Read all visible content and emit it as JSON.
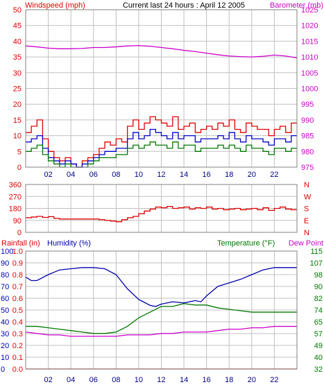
{
  "colors": {
    "wind": "#e00000",
    "gust": "#e00000",
    "wind2": "#0000cc",
    "wind3": "#007700",
    "barometer": "#cc00cc",
    "direction": "#e00000",
    "humidity": "#0000aa",
    "temperature": "#007700",
    "dewpoint": "#cc00cc",
    "rainfall": "#e00000",
    "grid": "#c0c0c0",
    "title": "#000000"
  },
  "chart_data": [
    {
      "type": "line",
      "title": "Current last 24 hours : April 12 2005",
      "ylabel": "Windspeed (mph)",
      "y2label": "Barometer (mb)",
      "xlim": [
        0,
        24
      ],
      "x_ticks": [
        "02",
        "04",
        "06",
        "08",
        "10",
        "12",
        "14",
        "16",
        "18",
        "20",
        "22"
      ],
      "x_tick_values": [
        2,
        4,
        6,
        8,
        10,
        12,
        14,
        16,
        18,
        20,
        22
      ],
      "ylim": [
        0,
        50
      ],
      "y_ticks": [
        "0",
        "5",
        "10",
        "15",
        "20",
        "25",
        "30",
        "35",
        "40",
        "45",
        "50"
      ],
      "y2lim": [
        975,
        1025
      ],
      "y2_ticks": [
        "975",
        "980",
        "985",
        "990",
        "995",
        "1000",
        "1005",
        "1010",
        "1015",
        "1020",
        "1025"
      ],
      "grid": true,
      "series": [
        {
          "key": "gust",
          "axis": "y",
          "step": true,
          "x": [
            0.0,
            0.5,
            1.0,
            1.5,
            2.0,
            2.5,
            3.0,
            3.5,
            4.0,
            4.5,
            5.0,
            5.5,
            6.0,
            6.5,
            7.0,
            7.5,
            8.0,
            8.5,
            9.0,
            9.5,
            10.0,
            10.5,
            11.0,
            11.5,
            12.0,
            12.5,
            13.0,
            13.5,
            14.0,
            14.5,
            15.0,
            15.5,
            16.0,
            16.5,
            17.0,
            17.5,
            18.0,
            18.5,
            19.0,
            19.5,
            20.0,
            20.5,
            21.0,
            21.5,
            22.0,
            22.5,
            23.0,
            23.5
          ],
          "values": [
            11,
            13,
            15,
            9,
            5,
            3,
            2,
            3,
            1,
            0,
            2,
            3,
            4,
            6,
            8,
            7,
            9,
            8,
            13,
            15,
            12,
            14,
            16,
            15,
            14,
            13,
            16,
            12,
            13,
            14,
            11,
            12,
            13,
            12,
            14,
            13,
            15,
            12,
            11,
            14,
            13,
            12,
            12,
            10,
            12,
            13,
            11,
            14
          ]
        },
        {
          "key": "wind2",
          "axis": "y",
          "step": true,
          "x": [
            0.0,
            0.5,
            1.0,
            1.5,
            2.0,
            2.5,
            3.0,
            3.5,
            4.0,
            4.5,
            5.0,
            5.5,
            6.0,
            6.5,
            7.0,
            7.5,
            8.0,
            8.5,
            9.0,
            9.5,
            10.0,
            10.5,
            11.0,
            11.5,
            12.0,
            12.5,
            13.0,
            13.5,
            14.0,
            14.5,
            15.0,
            15.5,
            16.0,
            16.5,
            17.0,
            17.5,
            18.0,
            18.5,
            19.0,
            19.5,
            20.0,
            20.5,
            21.0,
            21.5,
            22.0,
            22.5,
            23.0,
            23.5
          ],
          "values": [
            8,
            9,
            10,
            6,
            3,
            2,
            1,
            2,
            1,
            0,
            1,
            2,
            3,
            4,
            5,
            5,
            6,
            6,
            9,
            11,
            9,
            10,
            12,
            11,
            10,
            9,
            11,
            9,
            10,
            10,
            8,
            9,
            9,
            9,
            10,
            9,
            11,
            9,
            8,
            10,
            9,
            9,
            8,
            7,
            9,
            9,
            8,
            10
          ]
        },
        {
          "key": "wind3",
          "axis": "y",
          "step": true,
          "x": [
            0.0,
            0.5,
            1.0,
            1.5,
            2.0,
            2.5,
            3.0,
            3.5,
            4.0,
            4.5,
            5.0,
            5.5,
            6.0,
            6.5,
            7.0,
            7.5,
            8.0,
            8.5,
            9.0,
            9.5,
            10.0,
            10.5,
            11.0,
            11.5,
            12.0,
            12.5,
            13.0,
            13.5,
            14.0,
            14.5,
            15.0,
            15.5,
            16.0,
            16.5,
            17.0,
            17.5,
            18.0,
            18.5,
            19.0,
            19.5,
            20.0,
            20.5,
            21.0,
            21.5,
            22.0,
            22.5,
            23.0,
            23.5
          ],
          "values": [
            5,
            6,
            7,
            4,
            2,
            1,
            0,
            1,
            0,
            0,
            0,
            1,
            2,
            3,
            3,
            3,
            4,
            4,
            6,
            7,
            6,
            7,
            8,
            7,
            7,
            6,
            8,
            6,
            7,
            7,
            5,
            6,
            6,
            6,
            7,
            6,
            7,
            6,
            5,
            7,
            6,
            6,
            5,
            4,
            6,
            6,
            5,
            6
          ]
        },
        {
          "key": "barometer",
          "axis": "y2",
          "step": false,
          "x": [
            0,
            1,
            2,
            3,
            4,
            5,
            6,
            7,
            8,
            9,
            10,
            11,
            12,
            13,
            14,
            15,
            16,
            17,
            18,
            19,
            20,
            21,
            22,
            23,
            24
          ],
          "values": [
            1013.5,
            1013.2,
            1012.8,
            1012.6,
            1012.6,
            1012.7,
            1013.0,
            1013.0,
            1013.2,
            1013.5,
            1013.6,
            1013.4,
            1013.0,
            1012.6,
            1012.1,
            1011.7,
            1011.2,
            1010.7,
            1010.3,
            1010.1,
            1010.0,
            1010.2,
            1010.6,
            1010.3,
            1009.7
          ]
        }
      ]
    },
    {
      "type": "line",
      "xlim": [
        0,
        24
      ],
      "x_ticks": [
        "02",
        "04",
        "06",
        "08",
        "10",
        "12",
        "14",
        "16",
        "18",
        "20",
        "22"
      ],
      "x_tick_values": [
        2,
        4,
        6,
        8,
        10,
        12,
        14,
        16,
        18,
        20,
        22
      ],
      "ylim": [
        0,
        360
      ],
      "y_ticks": [
        "0",
        "90",
        "180",
        "270",
        "360"
      ],
      "y2_ticks": [
        "N",
        "E",
        "S",
        "W",
        "N"
      ],
      "grid": true,
      "series": [
        {
          "key": "direction",
          "axis": "y",
          "step": true,
          "x": [
            0.0,
            0.5,
            1.0,
            1.5,
            2.0,
            2.5,
            3.0,
            3.5,
            4.0,
            4.5,
            5.0,
            5.5,
            6.0,
            6.5,
            7.0,
            7.5,
            8.0,
            8.5,
            9.0,
            9.5,
            10.0,
            10.5,
            11.0,
            11.5,
            12.0,
            12.5,
            13.0,
            13.5,
            14.0,
            14.5,
            15.0,
            15.5,
            16.0,
            16.5,
            17.0,
            17.5,
            18.0,
            18.5,
            19.0,
            19.5,
            20.0,
            20.5,
            21.0,
            21.5,
            22.0,
            22.5,
            23.0,
            23.5
          ],
          "values": [
            110,
            115,
            120,
            112,
            118,
            105,
            100,
            100,
            100,
            100,
            100,
            100,
            100,
            95,
            90,
            85,
            80,
            95,
            110,
            120,
            140,
            160,
            175,
            190,
            185,
            195,
            180,
            185,
            190,
            175,
            185,
            180,
            190,
            175,
            180,
            170,
            175,
            180,
            170,
            175,
            180,
            170,
            185,
            165,
            180,
            190,
            175,
            170
          ]
        }
      ]
    },
    {
      "type": "line",
      "labels": {
        "rainfall": "Rainfall (in)",
        "humidity": "Humidity (%)",
        "temperature": "Temperature (°F)",
        "dewpoint": "Dew Point"
      },
      "xlim": [
        0,
        24
      ],
      "x_ticks": [
        "02",
        "04",
        "06",
        "08",
        "10",
        "12",
        "14",
        "16",
        "18",
        "20",
        "22"
      ],
      "x_tick_values": [
        2,
        4,
        6,
        8,
        10,
        12,
        14,
        16,
        18,
        20,
        22
      ],
      "rain_lim": [
        0,
        1
      ],
      "rain_ticks": [
        "0.0",
        "0.1",
        "0.2",
        "0.3",
        "0.4",
        "0.5",
        "0.6",
        "0.7",
        "0.8",
        "0.9",
        "1.0"
      ],
      "hum_lim": [
        0,
        100
      ],
      "hum_ticks": [
        "0",
        "10",
        "20",
        "30",
        "40",
        "50",
        "60",
        "70",
        "80",
        "90",
        "100"
      ],
      "temp_lim": [
        32,
        115
      ],
      "temp_ticks": [
        "32",
        "40",
        "49",
        "57",
        "65",
        "74",
        "82",
        "90",
        "98",
        "107",
        "115"
      ],
      "grid": true,
      "series": [
        {
          "key": "humidity",
          "axis": "hum",
          "step": false,
          "x": [
            0,
            0.5,
            1,
            2,
            3,
            4,
            5,
            6,
            7,
            8,
            9,
            10,
            11,
            11.5,
            12,
            13,
            14,
            15,
            15.5,
            16,
            17,
            18,
            19,
            20,
            21,
            22,
            23,
            24
          ],
          "values": [
            78,
            75,
            75,
            80,
            84,
            85,
            86,
            86,
            85,
            80,
            68,
            59,
            54,
            53,
            55,
            57,
            56,
            58,
            57,
            62,
            70,
            73,
            76,
            80,
            84,
            86,
            86,
            86
          ]
        },
        {
          "key": "temperature",
          "axis": "temp",
          "step": false,
          "x": [
            0,
            1,
            2,
            3,
            4,
            5,
            6,
            7,
            8,
            9,
            10,
            11,
            12,
            13,
            14,
            15,
            16,
            17,
            18,
            19,
            20,
            21,
            22,
            23,
            24
          ],
          "values": [
            62,
            62,
            61,
            60,
            59,
            58,
            57,
            57,
            58,
            62,
            68,
            72,
            76,
            76,
            78,
            77,
            77,
            75,
            74,
            73,
            72,
            72,
            72,
            72,
            72
          ]
        },
        {
          "key": "dewpoint",
          "axis": "temp",
          "step": false,
          "x": [
            0,
            1,
            2,
            3,
            4,
            5,
            6,
            7,
            8,
            9,
            10,
            11,
            12,
            13,
            14,
            15,
            16,
            17,
            18,
            19,
            20,
            21,
            22,
            23,
            24
          ],
          "values": [
            58,
            57,
            56,
            56,
            55,
            55,
            55,
            55,
            55,
            56,
            56,
            56,
            57,
            57,
            58,
            58,
            58,
            59,
            60,
            60,
            61,
            61,
            62,
            62,
            62
          ]
        },
        {
          "key": "rainfall",
          "axis": "rain",
          "step": false,
          "x": [
            0,
            24
          ],
          "values": [
            0,
            0
          ]
        }
      ]
    }
  ]
}
